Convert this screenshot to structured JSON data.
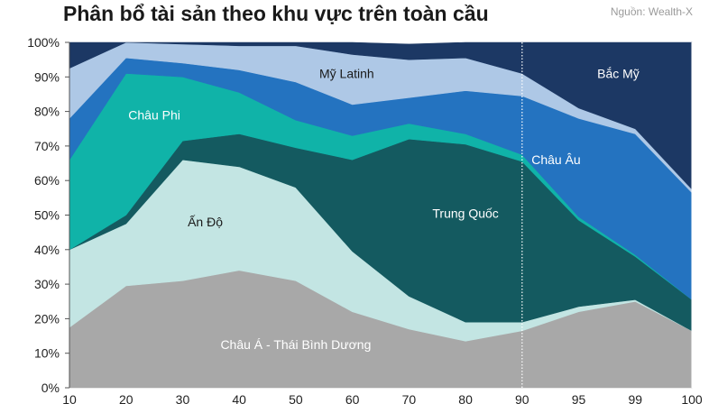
{
  "title": "Phân bổ tài sản theo khu vực trên toàn cầu",
  "source": "Nguồn: Wealth-X",
  "chart_data": {
    "type": "area",
    "stacked": true,
    "percent": true,
    "x_categories": [
      "10",
      "20",
      "30",
      "40",
      "50",
      "60",
      "70",
      "80",
      "90",
      "95",
      "99",
      "100"
    ],
    "y_ticks": [
      "0%",
      "10%",
      "20%",
      "30%",
      "40%",
      "50%",
      "60%",
      "70%",
      "80%",
      "90%",
      "100%"
    ],
    "ylim": [
      0,
      100
    ],
    "divider_at": "90",
    "series": [
      {
        "name": "Châu Á - Thái Bình Dương",
        "color": "#a8a8a8",
        "label_color": "#ffffff",
        "label_x": 4.0,
        "label_y": 12.5,
        "values": [
          17.5,
          29.5,
          31,
          34,
          31,
          22,
          17,
          13.5,
          16.5,
          22,
          25,
          16.5
        ]
      },
      {
        "name": "Ấn Độ",
        "color": "#c3e5e3",
        "label_color": "#1a1a1a",
        "label_x": 2.4,
        "label_y": 48,
        "values": [
          22.5,
          18,
          35,
          30,
          27,
          17.5,
          9.5,
          5.5,
          2.5,
          1.5,
          0.5,
          0
        ]
      },
      {
        "name": "Trung Quốc",
        "color": "#145a60",
        "label_color": "#ffffff",
        "label_x": 7.0,
        "label_y": 50.5,
        "values": [
          0,
          2.5,
          5.5,
          9.5,
          11.5,
          26.5,
          45.5,
          51.5,
          46.5,
          25,
          12.5,
          9
        ]
      },
      {
        "name": "Châu Phi",
        "color": "#10b3a8",
        "label_color": "#ffffff",
        "label_x": 1.5,
        "label_y": 79,
        "values": [
          26,
          41,
          18.5,
          12,
          8,
          7,
          4.5,
          3,
          2,
          1,
          0.5,
          0
        ]
      },
      {
        "name": "Châu Âu",
        "color": "#2473c0",
        "label_color": "#ffffff",
        "label_x": 8.6,
        "label_y": 66,
        "values": [
          12,
          4.5,
          4,
          6.5,
          11,
          9,
          7.5,
          12.5,
          17,
          28.5,
          35,
          31
        ]
      },
      {
        "name": "Mỹ Latinh",
        "color": "#aec8e6",
        "label_color": "#1a1a1a",
        "label_x": 4.9,
        "label_y": 91,
        "values": [
          14.5,
          4.5,
          5.5,
          7,
          10.5,
          14.5,
          11,
          9.5,
          6.5,
          3,
          1.5,
          1
        ]
      },
      {
        "name": "Bắc Mỹ",
        "color": "#1c3864",
        "label_color": "#ffffff",
        "label_x": 9.7,
        "label_y": 91,
        "values": [
          7.5,
          0,
          0.5,
          1,
          1,
          3.5,
          4.5,
          4.5,
          9,
          19,
          25,
          42.5
        ]
      }
    ]
  }
}
